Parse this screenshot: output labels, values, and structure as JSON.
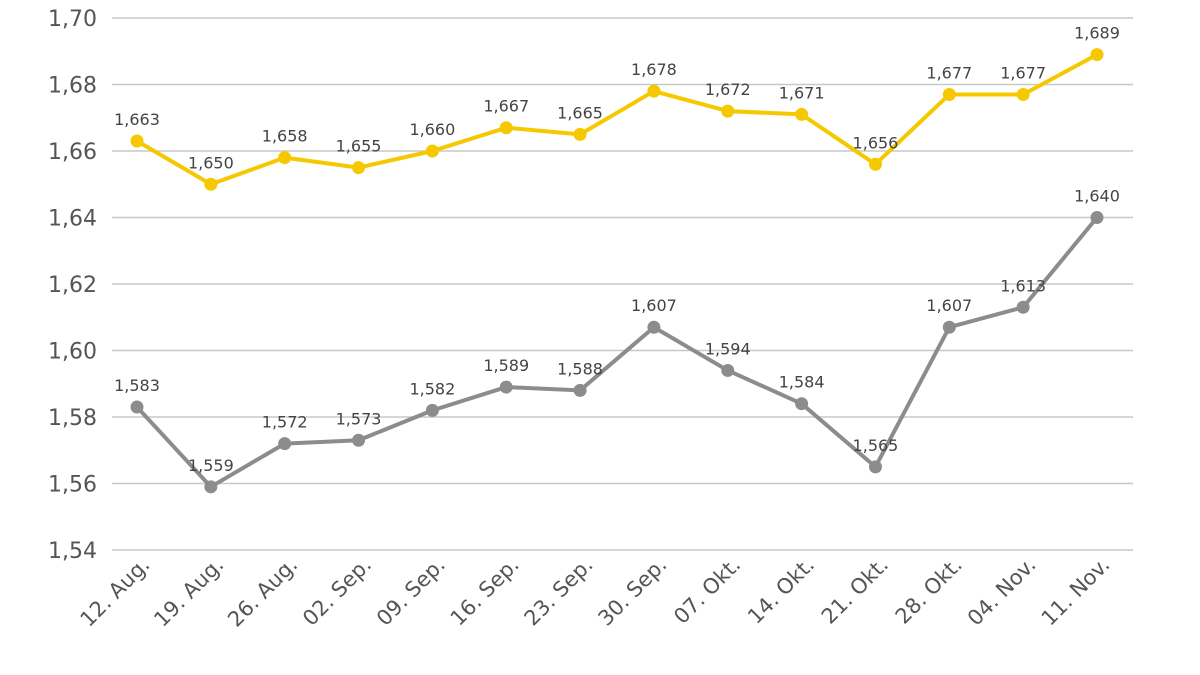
{
  "chart_data": {
    "type": "line",
    "title": "",
    "xlabel": "",
    "ylabel": "",
    "ylim": [
      1.54,
      1.7
    ],
    "grid": true,
    "y_ticks": [
      "1,54",
      "1,56",
      "1,58",
      "1,60",
      "1,62",
      "1,64",
      "1,66",
      "1,68",
      "1,70"
    ],
    "categories": [
      "12. Aug.",
      "19. Aug.",
      "26. Aug.",
      "02. Sep.",
      "09. Sep.",
      "16. Sep.",
      "23. Sep.",
      "30. Sep.",
      "07. Okt.",
      "14. Okt.",
      "21. Okt.",
      "28. Okt.",
      "04. Nov.",
      "11. Nov."
    ],
    "series": [
      {
        "name": "series-yellow",
        "color": "#f5c800",
        "values": [
          1.663,
          1.65,
          1.658,
          1.655,
          1.66,
          1.667,
          1.665,
          1.678,
          1.672,
          1.671,
          1.656,
          1.677,
          1.677,
          1.689
        ],
        "labels": [
          "1,663",
          "1,650",
          "1,658",
          "1,655",
          "1,660",
          "1,667",
          "1,665",
          "1,678",
          "1,672",
          "1,671",
          "1,656",
          "1,677",
          "1,677",
          "1,689"
        ]
      },
      {
        "name": "series-gray",
        "color": "#8c8c8c",
        "values": [
          1.583,
          1.559,
          1.572,
          1.573,
          1.582,
          1.589,
          1.588,
          1.607,
          1.594,
          1.584,
          1.565,
          1.607,
          1.613,
          1.64
        ],
        "labels": [
          "1,583",
          "1,559",
          "1,572",
          "1,573",
          "1,582",
          "1,589",
          "1,588",
          "1,607",
          "1,594",
          "1,584",
          "1,565",
          "1,607",
          "1,613",
          "1,640"
        ]
      }
    ]
  }
}
